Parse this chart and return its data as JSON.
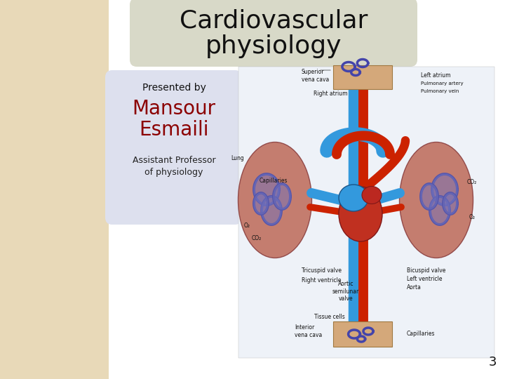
{
  "title_line1": "Cardiovascular",
  "title_line2": "physiology",
  "title_box_color": "#d8d9c8",
  "title_font_color": "#111111",
  "title_fontsize": 26,
  "bg_color": "#e8d9b8",
  "slide_bg": "#ffffff",
  "left_bar_color": "#e8d9b8",
  "presented_by_label": "Presented by",
  "name_line1": "Mansour",
  "name_line2": "Esmaili",
  "name_color": "#8b0000",
  "subtitle_color": "#222222",
  "info_box_color": "#dde0ee",
  "page_number": "3",
  "page_num_color": "#111111",
  "page_num_fontsize": 13,
  "presented_by_fontsize": 10,
  "name_fontsize": 20,
  "subtitle_fontsize": 9,
  "diagram_bg": "#eef2f8",
  "lung_color": "#c87868",
  "lung_vein_color": "#6060a8",
  "heart_red": "#cc3322",
  "vessel_blue": "#3399dd",
  "vessel_red": "#cc2200",
  "capillary_box_color": "#d4a87a",
  "label_fontsize": 5.5
}
